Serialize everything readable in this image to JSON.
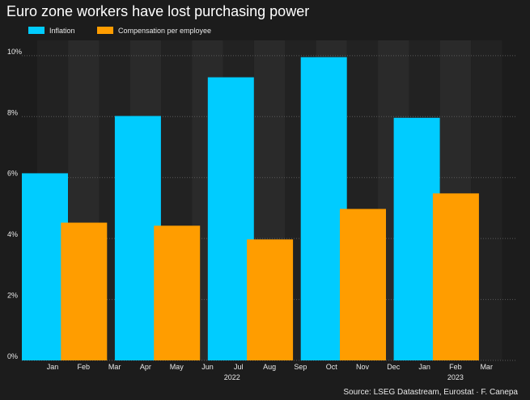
{
  "chart_data": {
    "type": "bar",
    "title": "Euro zone workers have lost purchasing power",
    "categories": [
      "Jan",
      "Feb",
      "Mar",
      "Apr",
      "May",
      "Jun",
      "Jul",
      "Aug",
      "Sep",
      "Oct",
      "Nov",
      "Dec",
      "Jan",
      "Feb",
      "Mar"
    ],
    "years": [
      "2022",
      "2023"
    ],
    "series": [
      {
        "name": "Inflation",
        "color": "#00ccff",
        "values": [
          6.14,
          null,
          null,
          8.02,
          null,
          null,
          9.29,
          null,
          null,
          9.95,
          null,
          null,
          7.96,
          null,
          null
        ]
      },
      {
        "name": "Compensation per employee",
        "color": "#ff9d00",
        "values": [
          null,
          4.52,
          null,
          null,
          4.42,
          null,
          null,
          3.97,
          null,
          null,
          4.97,
          null,
          null,
          5.48,
          null
        ]
      }
    ],
    "ylim": [
      0,
      10.5
    ],
    "yticks": [
      {
        "value": 0,
        "label": "0%"
      },
      {
        "value": 2,
        "label": "2%"
      },
      {
        "value": 4,
        "label": "4%"
      },
      {
        "value": 6,
        "label": "6%"
      },
      {
        "value": 8,
        "label": "8%"
      },
      {
        "value": 10,
        "label": "10%"
      }
    ],
    "grid": true,
    "source": "Source: LSEG Datastream, Eurostat · F. Canepa"
  }
}
